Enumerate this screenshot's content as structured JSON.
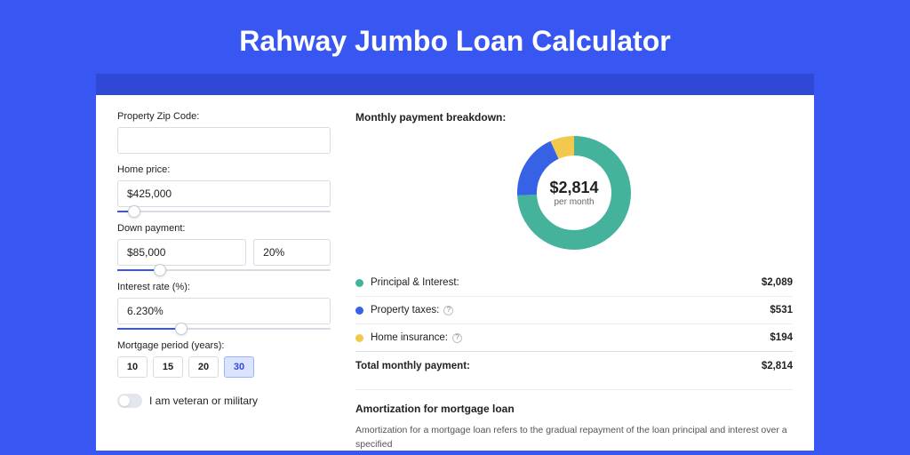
{
  "page": {
    "title": "Rahway Jumbo Loan Calculator"
  },
  "colors": {
    "page_bg": "#3857f2",
    "header_strip": "#2f49d6",
    "principal": "#45b39c",
    "taxes": "#3762e6",
    "insurance": "#f2c94c"
  },
  "form": {
    "zip": {
      "label": "Property Zip Code:",
      "value": ""
    },
    "home_price": {
      "label": "Home price:",
      "value": "$425,000",
      "slider_pct": 8
    },
    "down_payment": {
      "label": "Down payment:",
      "value": "$85,000",
      "pct": "20%",
      "slider_pct": 20
    },
    "interest": {
      "label": "Interest rate (%):",
      "value": "6.230%",
      "slider_pct": 30
    },
    "period": {
      "label": "Mortgage period (years):",
      "options": [
        "10",
        "15",
        "20",
        "30"
      ],
      "selected": "30"
    },
    "veteran": {
      "label": "I am veteran or military",
      "on": false
    }
  },
  "breakdown": {
    "title": "Monthly payment breakdown:",
    "amount": "$2,814",
    "sub": "per month",
    "donut": {
      "size": 128,
      "stroke": 22,
      "slices": [
        {
          "key": "principal",
          "pct": 74.2
        },
        {
          "key": "taxes",
          "pct": 18.9
        },
        {
          "key": "insurance",
          "pct": 6.9
        }
      ]
    },
    "rows": [
      {
        "label": "Principal & Interest:",
        "value": "$2,089",
        "color_key": "principal",
        "info": false
      },
      {
        "label": "Property taxes:",
        "value": "$531",
        "color_key": "taxes",
        "info": true
      },
      {
        "label": "Home insurance:",
        "value": "$194",
        "color_key": "insurance",
        "info": true
      }
    ],
    "total": {
      "label": "Total monthly payment:",
      "value": "$2,814"
    }
  },
  "amortization": {
    "title": "Amortization for mortgage loan",
    "text": "Amortization for a mortgage loan refers to the gradual repayment of the loan principal and interest over a specified"
  }
}
